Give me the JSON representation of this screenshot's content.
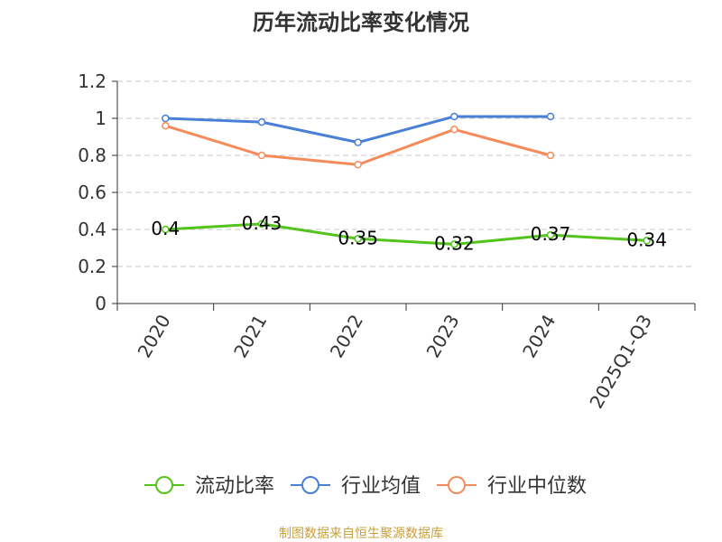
{
  "chart_data": {
    "type": "line",
    "title": "历年流动比率变化情况",
    "categories": [
      "2020",
      "2021",
      "2022",
      "2023",
      "2024",
      "2025Q1-Q3"
    ],
    "ylim": [
      0,
      1.2
    ],
    "yticks": [
      "0",
      "0.2",
      "0.4",
      "0.6",
      "0.8",
      "1",
      "1.2"
    ],
    "grid": true,
    "legend_position": "bottom",
    "series": [
      {
        "name": "流动比率",
        "color": "#52c41a",
        "values": [
          0.4,
          0.43,
          0.35,
          0.32,
          0.37,
          0.34
        ],
        "labels": [
          "0.4",
          "0.43",
          "0.35",
          "0.32",
          "0.37",
          "0.34"
        ]
      },
      {
        "name": "行业均值",
        "color": "#4a7fd6",
        "values": [
          1.0,
          0.98,
          0.87,
          1.01,
          1.01,
          null
        ]
      },
      {
        "name": "行业中位数",
        "color": "#f58b5a",
        "values": [
          0.96,
          0.8,
          0.75,
          0.94,
          0.8,
          null
        ]
      }
    ]
  },
  "footer": {
    "source": "制图数据来自恒生聚源数据库"
  }
}
